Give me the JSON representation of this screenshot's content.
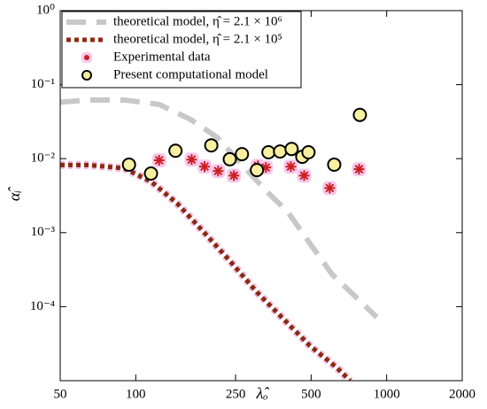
{
  "chart_data": {
    "type": "line",
    "xlabel": "λ̂ₒ",
    "ylabel": "α̂ᵢ",
    "xlog": true,
    "ylog": true,
    "xlim": [
      50,
      2000
    ],
    "ylim": [
      1e-05,
      1
    ],
    "xticks": [
      50,
      100,
      250,
      500,
      1000,
      2000
    ],
    "yticks": [
      {
        "value": 1,
        "label": "10⁰"
      },
      {
        "value": 0.1,
        "label": "10⁻¹"
      },
      {
        "value": 0.01,
        "label": "10⁻²"
      },
      {
        "value": 0.001,
        "label": "10⁻³"
      },
      {
        "value": 0.0001,
        "label": "10⁻⁴"
      }
    ],
    "legend": "upper left",
    "series": [
      {
        "name": "theoretical model, η̂ = 2.1 × 10⁶",
        "color": "#c8c8c8",
        "line": "dashed",
        "x": [
          50,
          65,
          90,
          124,
          165,
          211,
          254,
          330,
          404,
          495,
          608,
          745,
          913
        ],
        "values": [
          0.058,
          0.062,
          0.062,
          0.054,
          0.034,
          0.0194,
          0.0097,
          0.0037,
          0.0019,
          0.00071,
          0.00027,
          0.00014,
          7.2e-05
        ]
      },
      {
        "name": "theoretical model, η̂ = 2.1 × 10⁵",
        "color": "#8b2a10",
        "line": "dotted",
        "x": [
          50,
          65,
          90,
          115,
          146,
          187,
          238,
          304,
          388,
          495,
          633,
          715
        ],
        "values": [
          0.0082,
          0.0082,
          0.0074,
          0.0049,
          0.0025,
          0.00101,
          0.00041,
          0.000157,
          6.8e-05,
          2.95e-05,
          1.5e-05,
          1e-05
        ]
      },
      {
        "name": "Experimental data",
        "color": "#cc1f1f",
        "marker": "asterisk",
        "x": [
          124,
          167,
          188,
          213,
          246,
          307,
          330,
          415,
          469,
          593,
          776
        ],
        "values": [
          0.0095,
          0.0097,
          0.0078,
          0.0068,
          0.0059,
          0.008,
          0.0076,
          0.0078,
          0.0059,
          0.004,
          0.0072
        ]
      },
      {
        "name": "Present computational model",
        "color": "#f7f0a0",
        "marker": "circle",
        "x": [
          94,
          115,
          144,
          200,
          237,
          265,
          304,
          338,
          376,
          418,
          461,
          488,
          618,
          782
        ],
        "values": [
          0.0083,
          0.0063,
          0.0128,
          0.0151,
          0.0098,
          0.0115,
          0.007,
          0.0122,
          0.0125,
          0.0135,
          0.0106,
          0.0122,
          0.0083,
          0.039
        ]
      }
    ]
  }
}
